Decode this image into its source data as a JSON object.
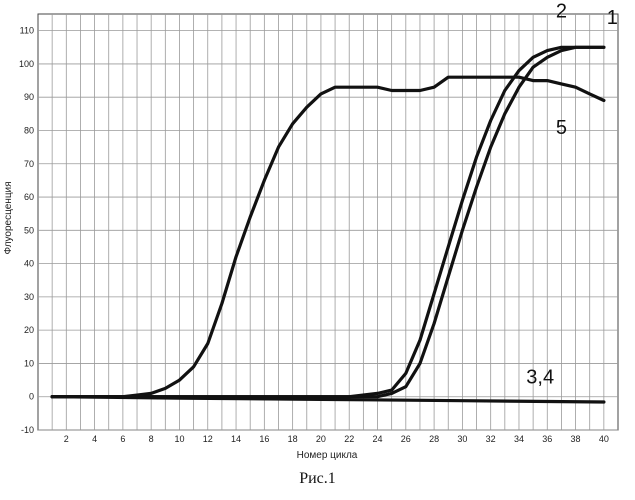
{
  "caption": "Рис.1",
  "chart_data": {
    "type": "line",
    "title": "",
    "xlabel": "Номер цикла",
    "ylabel": "Флуоресценция",
    "xlim": [
      0,
      41
    ],
    "ylim": [
      -10,
      115
    ],
    "grid": true,
    "x_ticks": [
      2,
      4,
      6,
      8,
      10,
      12,
      14,
      16,
      18,
      20,
      22,
      24,
      26,
      28,
      30,
      32,
      34,
      36,
      38,
      40
    ],
    "y_ticks": [
      -10,
      0,
      10,
      20,
      30,
      40,
      50,
      60,
      70,
      80,
      90,
      100,
      110
    ],
    "series": [
      {
        "name": "1",
        "x": [
          1,
          22,
          24,
          25,
          26,
          27,
          28,
          29,
          30,
          31,
          32,
          33,
          34,
          35,
          36,
          37,
          38,
          39,
          40
        ],
        "values": [
          0,
          0,
          0,
          1,
          3,
          10,
          22,
          36,
          50,
          63,
          75,
          85,
          93,
          99,
          102,
          104,
          105,
          105,
          105
        ]
      },
      {
        "name": "2",
        "x": [
          1,
          22,
          24,
          25,
          26,
          27,
          28,
          29,
          30,
          31,
          32,
          33,
          34,
          35,
          36,
          37,
          38,
          39,
          40
        ],
        "values": [
          0,
          0,
          1,
          2,
          7,
          17,
          31,
          45,
          59,
          72,
          83,
          92,
          98,
          102,
          104,
          105,
          105,
          105,
          105
        ]
      },
      {
        "name": "3,4",
        "x": [
          1,
          10,
          20,
          30,
          40
        ],
        "values": [
          0,
          -0.4,
          -0.8,
          -1.2,
          -1.6
        ]
      },
      {
        "name": "5",
        "x": [
          1,
          6,
          7,
          8,
          9,
          10,
          11,
          12,
          13,
          14,
          15,
          16,
          17,
          18,
          19,
          20,
          21,
          22,
          23,
          24,
          25,
          26,
          27,
          28,
          29,
          30,
          31,
          32,
          33,
          34,
          35,
          36,
          37,
          38,
          39,
          40
        ],
        "values": [
          0,
          0,
          0.5,
          1,
          2.5,
          5,
          9,
          16,
          28,
          42,
          54,
          65,
          75,
          82,
          87,
          91,
          93,
          93,
          93,
          93,
          92,
          92,
          92,
          93,
          96,
          96,
          96,
          96,
          96,
          96,
          95,
          95,
          94,
          93,
          91,
          89
        ]
      }
    ],
    "annotations": [
      "1",
      "2",
      "3,4",
      "5"
    ]
  }
}
